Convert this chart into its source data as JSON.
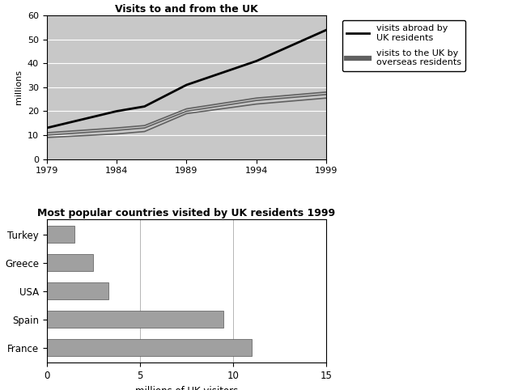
{
  "line_title": "Visits to and from the UK",
  "line_years": [
    1979,
    1984,
    1986,
    1989,
    1994,
    1999
  ],
  "visits_abroad": [
    13,
    20,
    22,
    31,
    41,
    54
  ],
  "visits_to_uk_top": [
    11,
    13,
    14,
    21,
    25.5,
    28
  ],
  "visits_to_uk_mid": [
    10,
    12,
    13,
    20,
    24.5,
    27
  ],
  "visits_to_uk_bot": [
    9,
    10.5,
    11.5,
    19,
    23,
    25.5
  ],
  "line_ylabel": "millions",
  "line_ylim": [
    0,
    60
  ],
  "line_yticks": [
    0,
    10,
    20,
    30,
    40,
    50,
    60
  ],
  "line_xticks": [
    1979,
    1984,
    1989,
    1994,
    1999
  ],
  "legend_abroad": "visits abroad by\nUK residents",
  "legend_to_uk": "visits to the UK by\noverseas residents",
  "bar_title": "Most popular countries visited by UK residents 1999",
  "bar_countries": [
    "Turkey",
    "Greece",
    "USA",
    "Spain",
    "France"
  ],
  "bar_values": [
    1.5,
    2.5,
    3.3,
    9.5,
    11.0
  ],
  "bar_xlabel": "millions of UK visitors",
  "bar_xlim": [
    0,
    15
  ],
  "bar_xticks": [
    0,
    5,
    10,
    15
  ],
  "bar_color": "#a0a0a0",
  "plot_bg_color": "#c8c8c8",
  "fig_bg_color": "#ffffff",
  "line_color_abroad": "#000000",
  "line_color_to_uk": "#606060"
}
